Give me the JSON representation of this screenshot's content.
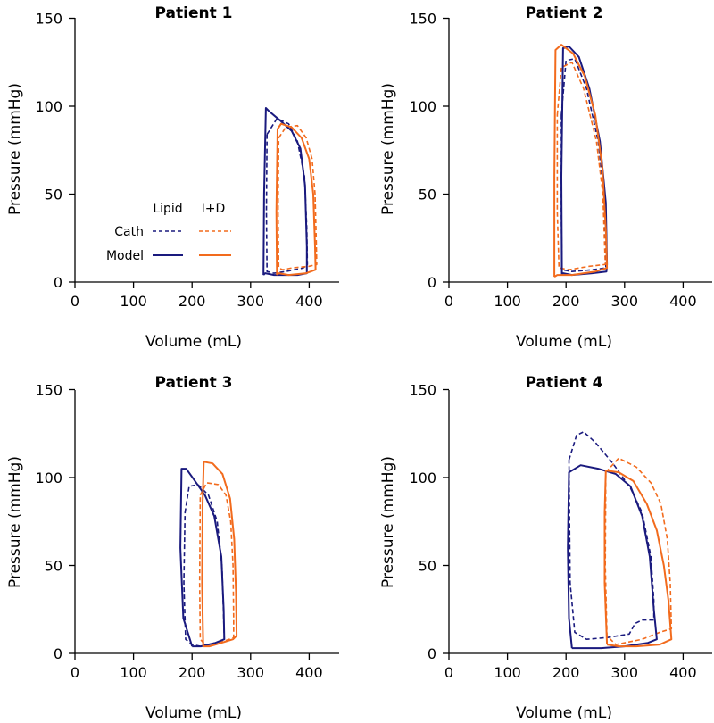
{
  "colors": {
    "lipid": "#1a1a7e",
    "id": "#f26b1d"
  },
  "legend": {
    "col_lipid": "Lipid",
    "col_id": "I+D",
    "row_cath": "Cath",
    "row_model": "Model"
  },
  "chart_data": [
    {
      "type": "line",
      "title": "Patient 1",
      "xlabel": "Volume (mL)",
      "ylabel": "Pressure (mmHg)",
      "xlim": [
        0,
        450
      ],
      "ylim": [
        0,
        150
      ],
      "xticks": [
        "0",
        "100",
        "200",
        "300",
        "400"
      ],
      "yticks": [
        "0",
        "50",
        "100",
        "150"
      ],
      "series": [
        {
          "name": "Lipid Cath",
          "style": "dashed",
          "color": "lipid",
          "points": [
            [
              328,
              84
            ],
            [
              345,
              93
            ],
            [
              365,
              90
            ],
            [
              380,
              80
            ],
            [
              392,
              60
            ],
            [
              396,
              30
            ],
            [
              397,
              10
            ],
            [
              390,
              8
            ],
            [
              360,
              6
            ],
            [
              340,
              5
            ],
            [
              328,
              6
            ],
            [
              327,
              40
            ],
            [
              328,
              84
            ]
          ]
        },
        {
          "name": "I+D Cath",
          "style": "dashed",
          "color": "id",
          "points": [
            [
              348,
              82
            ],
            [
              360,
              88
            ],
            [
              380,
              89
            ],
            [
              395,
              82
            ],
            [
              405,
              70
            ],
            [
              410,
              50
            ],
            [
              412,
              25
            ],
            [
              413,
              10
            ],
            [
              400,
              9
            ],
            [
              370,
              8
            ],
            [
              355,
              7
            ],
            [
              348,
              8
            ],
            [
              347,
              40
            ],
            [
              348,
              82
            ]
          ]
        },
        {
          "name": "Lipid Model",
          "style": "solid",
          "color": "lipid",
          "points": [
            [
              322,
              4
            ],
            [
              323,
              50
            ],
            [
              326,
              99
            ],
            [
              332,
              97
            ],
            [
              350,
              92
            ],
            [
              370,
              86
            ],
            [
              385,
              76
            ],
            [
              393,
              55
            ],
            [
              396,
              20
            ],
            [
              396,
              5
            ],
            [
              380,
              4
            ],
            [
              340,
              4
            ],
            [
              325,
              5
            ],
            [
              322,
              4
            ]
          ]
        },
        {
          "name": "I+D Model",
          "style": "solid",
          "color": "id",
          "points": [
            [
              345,
              4
            ],
            [
              344,
              40
            ],
            [
              346,
              87
            ],
            [
              352,
              90
            ],
            [
              370,
              88
            ],
            [
              387,
              82
            ],
            [
              400,
              70
            ],
            [
              407,
              50
            ],
            [
              410,
              20
            ],
            [
              411,
              7
            ],
            [
              395,
              5
            ],
            [
              365,
              4
            ],
            [
              348,
              5
            ],
            [
              345,
              4
            ]
          ]
        }
      ]
    },
    {
      "type": "line",
      "title": "Patient 2",
      "xlabel": "Volume (mL)",
      "ylabel": "Pressure (mmHg)",
      "xlim": [
        0,
        450
      ],
      "ylim": [
        0,
        150
      ],
      "xticks": [
        "0",
        "100",
        "200",
        "300",
        "400"
      ],
      "yticks": [
        "0",
        "50",
        "100",
        "150"
      ],
      "series": [
        {
          "name": "Lipid Cath",
          "style": "dashed",
          "color": "lipid",
          "points": [
            [
              192,
              95
            ],
            [
              200,
              126
            ],
            [
              215,
              127
            ],
            [
              235,
              110
            ],
            [
              255,
              80
            ],
            [
              265,
              50
            ],
            [
              268,
              20
            ],
            [
              268,
              8
            ],
            [
              245,
              7
            ],
            [
              210,
              6
            ],
            [
              193,
              7
            ],
            [
              192,
              40
            ],
            [
              192,
              95
            ]
          ]
        },
        {
          "name": "I+D Cath",
          "style": "dashed",
          "color": "id",
          "points": [
            [
              185,
              95
            ],
            [
              192,
              122
            ],
            [
              210,
              125
            ],
            [
              230,
              110
            ],
            [
              252,
              80
            ],
            [
              263,
              50
            ],
            [
              266,
              20
            ],
            [
              267,
              10
            ],
            [
              240,
              9
            ],
            [
              205,
              7
            ],
            [
              188,
              8
            ],
            [
              185,
              40
            ],
            [
              185,
              95
            ]
          ]
        },
        {
          "name": "Lipid Model",
          "style": "solid",
          "color": "lipid",
          "points": [
            [
              193,
              4
            ],
            [
              192,
              60
            ],
            [
              195,
              133
            ],
            [
              205,
              134
            ],
            [
              222,
              128
            ],
            [
              240,
              110
            ],
            [
              258,
              80
            ],
            [
              268,
              45
            ],
            [
              270,
              10
            ],
            [
              269,
              6
            ],
            [
              245,
              5
            ],
            [
              210,
              4
            ],
            [
              195,
              5
            ],
            [
              193,
              4
            ]
          ]
        },
        {
          "name": "I+D Model",
          "style": "solid",
          "color": "id",
          "points": [
            [
              180,
              3
            ],
            [
              180,
              60
            ],
            [
              182,
              132
            ],
            [
              192,
              135
            ],
            [
              212,
              130
            ],
            [
              232,
              117
            ],
            [
              250,
              95
            ],
            [
              262,
              65
            ],
            [
              268,
              30
            ],
            [
              270,
              8
            ],
            [
              250,
              6
            ],
            [
              210,
              4
            ],
            [
              185,
              4
            ],
            [
              180,
              3
            ]
          ]
        }
      ]
    },
    {
      "type": "line",
      "title": "Patient 3",
      "xlabel": "Volume (mL)",
      "ylabel": "Pressure (mmHg)",
      "xlim": [
        0,
        450
      ],
      "ylim": [
        0,
        150
      ],
      "xticks": [
        "0",
        "100",
        "200",
        "300",
        "400"
      ],
      "yticks": [
        "0",
        "50",
        "100",
        "150"
      ],
      "series": [
        {
          "name": "Lipid Cath",
          "style": "dashed",
          "color": "lipid",
          "points": [
            [
              188,
              80
            ],
            [
              195,
              95
            ],
            [
              210,
              96
            ],
            [
              228,
              90
            ],
            [
              243,
              75
            ],
            [
              251,
              50
            ],
            [
              254,
              20
            ],
            [
              255,
              8
            ],
            [
              240,
              6
            ],
            [
              215,
              4
            ],
            [
              200,
              5
            ],
            [
              189,
              8
            ],
            [
              186,
              40
            ],
            [
              188,
              80
            ]
          ]
        },
        {
          "name": "I+D Cath",
          "style": "dashed",
          "color": "id",
          "points": [
            [
              214,
              90
            ],
            [
              225,
              97
            ],
            [
              245,
              96
            ],
            [
              258,
              90
            ],
            [
              266,
              75
            ],
            [
              270,
              50
            ],
            [
              271,
              20
            ],
            [
              271,
              9
            ],
            [
              255,
              7
            ],
            [
              238,
              5
            ],
            [
              225,
              4
            ],
            [
              214,
              8
            ],
            [
              213,
              40
            ],
            [
              214,
              90
            ]
          ]
        },
        {
          "name": "Lipid Model",
          "style": "solid",
          "color": "lipid",
          "points": [
            [
              200,
              4
            ],
            [
              185,
              20
            ],
            [
              180,
              60
            ],
            [
              182,
              105
            ],
            [
              190,
              105
            ],
            [
              205,
              98
            ],
            [
              222,
              90
            ],
            [
              238,
              78
            ],
            [
              250,
              55
            ],
            [
              254,
              25
            ],
            [
              255,
              8
            ],
            [
              240,
              6
            ],
            [
              215,
              4
            ],
            [
              200,
              4
            ]
          ]
        },
        {
          "name": "I+D Model",
          "style": "solid",
          "color": "id",
          "points": [
            [
              219,
              4
            ],
            [
              217,
              40
            ],
            [
              218,
              85
            ],
            [
              220,
              109
            ],
            [
              235,
              108
            ],
            [
              252,
              102
            ],
            [
              265,
              88
            ],
            [
              272,
              65
            ],
            [
              275,
              35
            ],
            [
              276,
              10
            ],
            [
              270,
              8
            ],
            [
              250,
              6
            ],
            [
              230,
              4
            ],
            [
              219,
              4
            ]
          ]
        }
      ]
    },
    {
      "type": "line",
      "title": "Patient 4",
      "xlabel": "Volume (mL)",
      "ylabel": "Pressure (mmHg)",
      "xlim": [
        0,
        450
      ],
      "ylim": [
        0,
        150
      ],
      "xticks": [
        "0",
        "100",
        "200",
        "300",
        "400"
      ],
      "yticks": [
        "0",
        "50",
        "100",
        "150"
      ],
      "series": [
        {
          "name": "Lipid Cath",
          "style": "dashed",
          "color": "lipid",
          "points": [
            [
              205,
              110
            ],
            [
              218,
              124
            ],
            [
              230,
              126
            ],
            [
              250,
              120
            ],
            [
              280,
              108
            ],
            [
              310,
              94
            ],
            [
              330,
              80
            ],
            [
              345,
              55
            ],
            [
              350,
              30
            ],
            [
              350,
              19
            ],
            [
              330,
              19
            ],
            [
              318,
              17
            ],
            [
              308,
              11
            ],
            [
              270,
              9
            ],
            [
              235,
              8
            ],
            [
              215,
              12
            ],
            [
              207,
              40
            ],
            [
              205,
              110
            ]
          ]
        },
        {
          "name": "I+D Cath",
          "style": "dashed",
          "color": "id",
          "points": [
            [
              268,
              103
            ],
            [
              290,
              111
            ],
            [
              320,
              106
            ],
            [
              345,
              97
            ],
            [
              362,
              85
            ],
            [
              373,
              65
            ],
            [
              378,
              40
            ],
            [
              380,
              14
            ],
            [
              360,
              12
            ],
            [
              330,
              8
            ],
            [
              300,
              6
            ],
            [
              285,
              5
            ],
            [
              270,
              10
            ],
            [
              267,
              50
            ],
            [
              268,
              103
            ]
          ]
        },
        {
          "name": "Lipid Model",
          "style": "solid",
          "color": "lipid",
          "points": [
            [
              210,
              3
            ],
            [
              205,
              20
            ],
            [
              203,
              60
            ],
            [
              205,
              103
            ],
            [
              225,
              107
            ],
            [
              255,
              105
            ],
            [
              285,
              102
            ],
            [
              310,
              95
            ],
            [
              330,
              78
            ],
            [
              343,
              55
            ],
            [
              350,
              25
            ],
            [
              355,
              8
            ],
            [
              340,
              6
            ],
            [
              300,
              4
            ],
            [
              260,
              3
            ],
            [
              210,
              3
            ]
          ]
        },
        {
          "name": "I+D Model",
          "style": "solid",
          "color": "id",
          "points": [
            [
              270,
              5
            ],
            [
              266,
              40
            ],
            [
              266,
              80
            ],
            [
              268,
              104
            ],
            [
              290,
              103
            ],
            [
              315,
              98
            ],
            [
              338,
              85
            ],
            [
              355,
              70
            ],
            [
              367,
              50
            ],
            [
              375,
              30
            ],
            [
              380,
              8
            ],
            [
              360,
              5
            ],
            [
              320,
              4
            ],
            [
              290,
              4
            ],
            [
              270,
              5
            ]
          ]
        }
      ]
    }
  ]
}
